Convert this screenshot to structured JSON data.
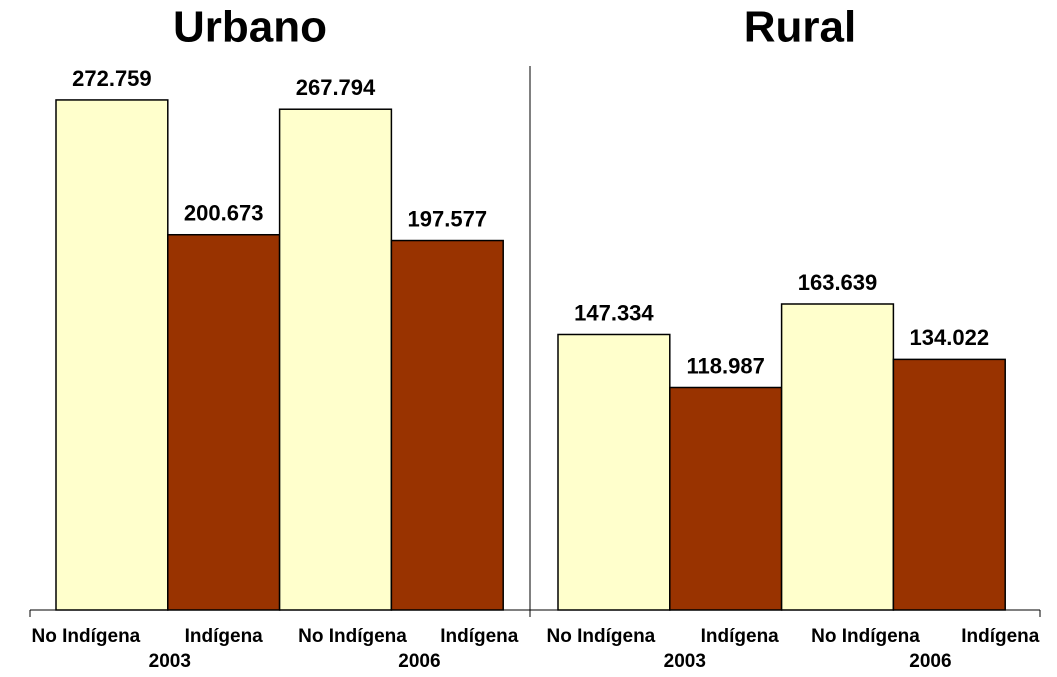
{
  "chart_data": [
    {
      "type": "bar",
      "title": "Urbano",
      "categories": [
        "No Indígena",
        "Indígena",
        "No Indígena",
        "Indígena"
      ],
      "group_labels": [
        "2003",
        "2006"
      ],
      "values": [
        272.759,
        200.673,
        267.794,
        197.577
      ],
      "colors": [
        "#ffffcc",
        "#993300",
        "#ffffcc",
        "#993300"
      ],
      "ylim": [
        0,
        300
      ]
    },
    {
      "type": "bar",
      "title": "Rural",
      "categories": [
        "No Indígena",
        "Indígena",
        "No Indígena",
        "Indígena"
      ],
      "group_labels": [
        "2003",
        "2006"
      ],
      "values": [
        147.334,
        118.987,
        163.639,
        134.022
      ],
      "colors": [
        "#ffffcc",
        "#993300",
        "#ffffcc",
        "#993300"
      ],
      "ylim": [
        0,
        300
      ]
    }
  ]
}
